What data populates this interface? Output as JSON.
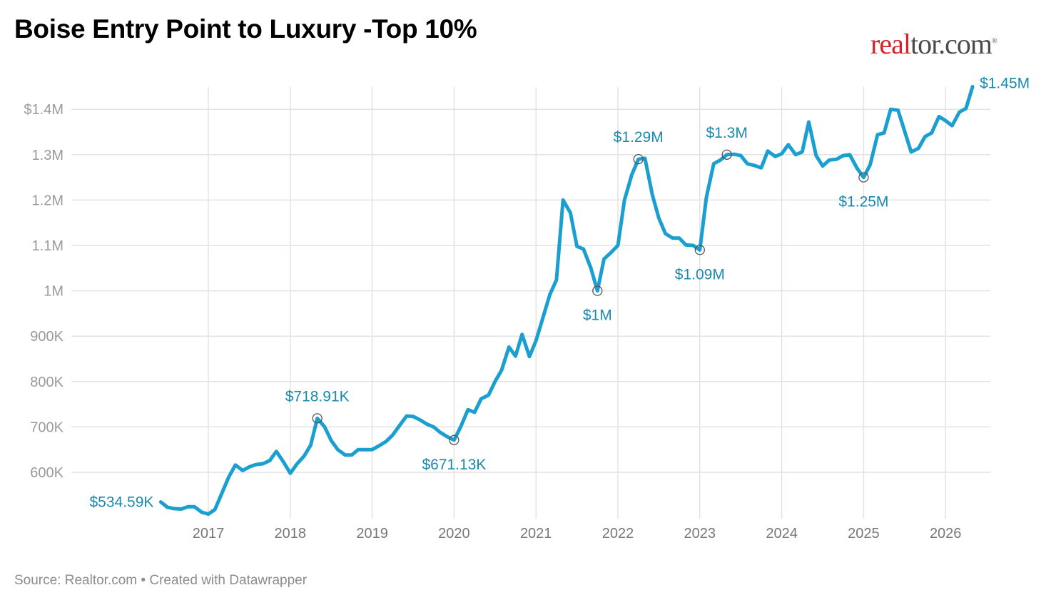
{
  "title": "Boise Entry Point to Luxury -Top 10%",
  "logo": {
    "part1": "real",
    "part2": "tor.com",
    "mark": "®"
  },
  "footer": "Source: Realtor.com • Created with Datawrapper",
  "colors": {
    "line": "#1b9fd1",
    "annotation": "#1b89ad",
    "grid": "#e3e3e3",
    "title": "#000000",
    "logo_red": "#d92228"
  },
  "chart_data": {
    "type": "line",
    "title": "Boise Entry Point to Luxury -Top 10%",
    "xlabel": "",
    "ylabel": "",
    "ylim": [
      500000,
      1450000
    ],
    "xlim": [
      2016.3,
      2026.55
    ],
    "grid": true,
    "y_ticks": [
      {
        "value": 600000,
        "label": "600K"
      },
      {
        "value": 700000,
        "label": "700K"
      },
      {
        "value": 800000,
        "label": "800K"
      },
      {
        "value": 900000,
        "label": "900K"
      },
      {
        "value": 1000000,
        "label": "1M"
      },
      {
        "value": 1100000,
        "label": "1.1M"
      },
      {
        "value": 1200000,
        "label": "1.2M"
      },
      {
        "value": 1300000,
        "label": "1.3M"
      },
      {
        "value": 1400000,
        "label": "$1.4M"
      }
    ],
    "x_ticks": [
      {
        "value": 2017,
        "label": "2017"
      },
      {
        "value": 2018,
        "label": "2018"
      },
      {
        "value": 2019,
        "label": "2019"
      },
      {
        "value": 2020,
        "label": "2020"
      },
      {
        "value": 2021,
        "label": "2021"
      },
      {
        "value": 2022,
        "label": "2022"
      },
      {
        "value": 2023,
        "label": "2023"
      },
      {
        "value": 2024,
        "label": "2024"
      },
      {
        "value": 2025,
        "label": "2025"
      },
      {
        "value": 2026,
        "label": "2026"
      }
    ],
    "series": [
      {
        "values": [
          [
            2016.42,
            534590
          ],
          [
            2016.5,
            523000
          ],
          [
            2016.58,
            520000
          ],
          [
            2016.67,
            519000
          ],
          [
            2016.75,
            524000
          ],
          [
            2016.83,
            524000
          ],
          [
            2016.92,
            512000
          ],
          [
            2017.0,
            508000
          ],
          [
            2017.08,
            518000
          ],
          [
            2017.17,
            556000
          ],
          [
            2017.25,
            590000
          ],
          [
            2017.33,
            616000
          ],
          [
            2017.42,
            604000
          ],
          [
            2017.5,
            612000
          ],
          [
            2017.58,
            617000
          ],
          [
            2017.67,
            619000
          ],
          [
            2017.75,
            626000
          ],
          [
            2017.83,
            646000
          ],
          [
            2017.92,
            622000
          ],
          [
            2018.0,
            598000
          ],
          [
            2018.08,
            618000
          ],
          [
            2018.17,
            636000
          ],
          [
            2018.25,
            660000
          ],
          [
            2018.33,
            718910
          ],
          [
            2018.42,
            700000
          ],
          [
            2018.5,
            670000
          ],
          [
            2018.58,
            650000
          ],
          [
            2018.67,
            638000
          ],
          [
            2018.75,
            638000
          ],
          [
            2018.83,
            650000
          ],
          [
            2018.92,
            650000
          ],
          [
            2019.0,
            650000
          ],
          [
            2019.08,
            658000
          ],
          [
            2019.17,
            668000
          ],
          [
            2019.25,
            682000
          ],
          [
            2019.33,
            702000
          ],
          [
            2019.42,
            724000
          ],
          [
            2019.5,
            723000
          ],
          [
            2019.58,
            716000
          ],
          [
            2019.67,
            706000
          ],
          [
            2019.75,
            700000
          ],
          [
            2019.83,
            688000
          ],
          [
            2019.92,
            678000
          ],
          [
            2020.0,
            671130
          ],
          [
            2020.08,
            700000
          ],
          [
            2020.17,
            738000
          ],
          [
            2020.25,
            732000
          ],
          [
            2020.33,
            762000
          ],
          [
            2020.42,
            770000
          ],
          [
            2020.5,
            800000
          ],
          [
            2020.58,
            825000
          ],
          [
            2020.67,
            876000
          ],
          [
            2020.75,
            856000
          ],
          [
            2020.83,
            904000
          ],
          [
            2020.92,
            855000
          ],
          [
            2021.0,
            890000
          ],
          [
            2021.08,
            938000
          ],
          [
            2021.17,
            992000
          ],
          [
            2021.25,
            1024000
          ],
          [
            2021.33,
            1200000
          ],
          [
            2021.42,
            1172000
          ],
          [
            2021.5,
            1098000
          ],
          [
            2021.58,
            1092000
          ],
          [
            2021.67,
            1050000
          ],
          [
            2021.75,
            1000000
          ],
          [
            2021.83,
            1070000
          ],
          [
            2021.92,
            1085000
          ],
          [
            2022.0,
            1100000
          ],
          [
            2022.08,
            1200000
          ],
          [
            2022.17,
            1256000
          ],
          [
            2022.25,
            1290000
          ],
          [
            2022.33,
            1292000
          ],
          [
            2022.42,
            1212000
          ],
          [
            2022.5,
            1160000
          ],
          [
            2022.58,
            1126000
          ],
          [
            2022.67,
            1116000
          ],
          [
            2022.75,
            1116000
          ],
          [
            2022.83,
            1101000
          ],
          [
            2022.92,
            1100000
          ],
          [
            2023.0,
            1090000
          ],
          [
            2023.08,
            1206000
          ],
          [
            2023.17,
            1280000
          ],
          [
            2023.25,
            1288000
          ],
          [
            2023.33,
            1300000
          ],
          [
            2023.42,
            1301000
          ],
          [
            2023.5,
            1298000
          ],
          [
            2023.58,
            1280000
          ],
          [
            2023.67,
            1276000
          ],
          [
            2023.75,
            1271000
          ],
          [
            2023.83,
            1308000
          ],
          [
            2023.92,
            1296000
          ],
          [
            2024.0,
            1302000
          ],
          [
            2024.08,
            1322000
          ],
          [
            2024.17,
            1300000
          ],
          [
            2024.25,
            1306000
          ],
          [
            2024.33,
            1372000
          ],
          [
            2024.42,
            1298000
          ],
          [
            2024.5,
            1275000
          ],
          [
            2024.58,
            1288000
          ],
          [
            2024.67,
            1290000
          ],
          [
            2024.75,
            1298000
          ],
          [
            2024.83,
            1300000
          ],
          [
            2024.92,
            1270000
          ],
          [
            2025.0,
            1250000
          ],
          [
            2025.08,
            1278000
          ],
          [
            2025.17,
            1344000
          ],
          [
            2025.25,
            1348000
          ],
          [
            2025.33,
            1400000
          ],
          [
            2025.42,
            1398000
          ],
          [
            2025.5,
            1352000
          ],
          [
            2025.58,
            1306000
          ],
          [
            2025.67,
            1314000
          ],
          [
            2025.75,
            1340000
          ],
          [
            2025.83,
            1348000
          ],
          [
            2025.92,
            1384000
          ],
          [
            2026.0,
            1375000
          ],
          [
            2026.08,
            1364000
          ],
          [
            2026.17,
            1394000
          ],
          [
            2026.25,
            1402000
          ],
          [
            2026.33,
            1450000
          ]
        ]
      }
    ],
    "annotations": [
      {
        "x": 2016.42,
        "y": 534590,
        "label": "$534.59K",
        "pos": "left",
        "circle": false
      },
      {
        "x": 2018.33,
        "y": 718910,
        "label": "$718.91K",
        "pos": "above",
        "circle": true
      },
      {
        "x": 2020.0,
        "y": 671130,
        "label": "$671.13K",
        "pos": "below",
        "circle": true
      },
      {
        "x": 2021.75,
        "y": 1000000,
        "label": "$1M",
        "pos": "below",
        "circle": true
      },
      {
        "x": 2022.25,
        "y": 1290000,
        "label": "$1.29M",
        "pos": "above",
        "circle": true
      },
      {
        "x": 2023.0,
        "y": 1090000,
        "label": "$1.09M",
        "pos": "below",
        "circle": true
      },
      {
        "x": 2023.33,
        "y": 1300000,
        "label": "$1.3M",
        "pos": "above",
        "circle": true
      },
      {
        "x": 2025.0,
        "y": 1250000,
        "label": "$1.25M",
        "pos": "below",
        "circle": true
      },
      {
        "x": 2026.33,
        "y": 1450000,
        "label": "$1.45M",
        "pos": "right",
        "circle": false
      }
    ]
  }
}
